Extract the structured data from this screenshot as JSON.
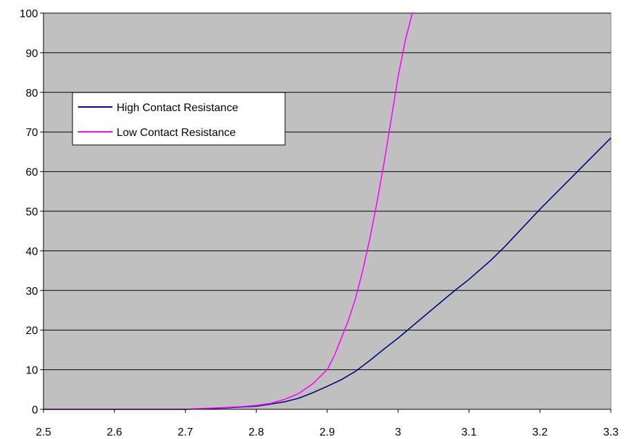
{
  "chart_data": {
    "type": "line",
    "title": "",
    "xlabel": "",
    "ylabel": "",
    "xlim": [
      2.5,
      3.3
    ],
    "ylim": [
      0,
      100
    ],
    "x_ticks": [
      "2.5",
      "2.6",
      "2.7",
      "2.8",
      "2.9",
      "3",
      "3.1",
      "3.2",
      "3.3"
    ],
    "y_ticks": [
      "0",
      "10",
      "20",
      "30",
      "40",
      "50",
      "60",
      "70",
      "80",
      "90",
      "100"
    ],
    "grid": "horizontal",
    "plot_background": "#c0c0c0",
    "legend_position": "upper-left",
    "series": [
      {
        "name": "High Contact Resistance",
        "color": "#000080",
        "x": [
          2.5,
          2.7,
          2.72,
          2.75,
          2.78,
          2.8,
          2.82,
          2.84,
          2.86,
          2.88,
          2.9,
          2.92,
          2.94,
          2.96,
          2.98,
          3.0,
          3.02,
          3.05,
          3.08,
          3.1,
          3.13,
          3.15,
          3.2,
          3.25,
          3.3
        ],
        "y": [
          0,
          0,
          0.1,
          0.3,
          0.6,
          0.8,
          1.3,
          1.9,
          2.8,
          4.2,
          5.8,
          7.5,
          9.6,
          12.3,
          15.2,
          18.0,
          21.0,
          25.5,
          30.0,
          32.8,
          37.5,
          41.0,
          50.5,
          59.5,
          68.5
        ]
      },
      {
        "name": "Low Contact Resistance",
        "color": "#ff00ff",
        "x": [
          2.5,
          2.7,
          2.72,
          2.75,
          2.78,
          2.8,
          2.82,
          2.84,
          2.86,
          2.88,
          2.9,
          2.91,
          2.92,
          2.93,
          2.94,
          2.95,
          2.96,
          2.97,
          2.98,
          2.99,
          3.0,
          3.01,
          3.02
        ],
        "y": [
          0,
          0,
          0.2,
          0.4,
          0.7,
          1.0,
          1.5,
          2.5,
          4.0,
          6.5,
          10.0,
          13.5,
          18.0,
          22.5,
          28.0,
          35.0,
          43.0,
          52.0,
          62.0,
          73.0,
          84.0,
          93.0,
          100.0
        ]
      }
    ]
  }
}
